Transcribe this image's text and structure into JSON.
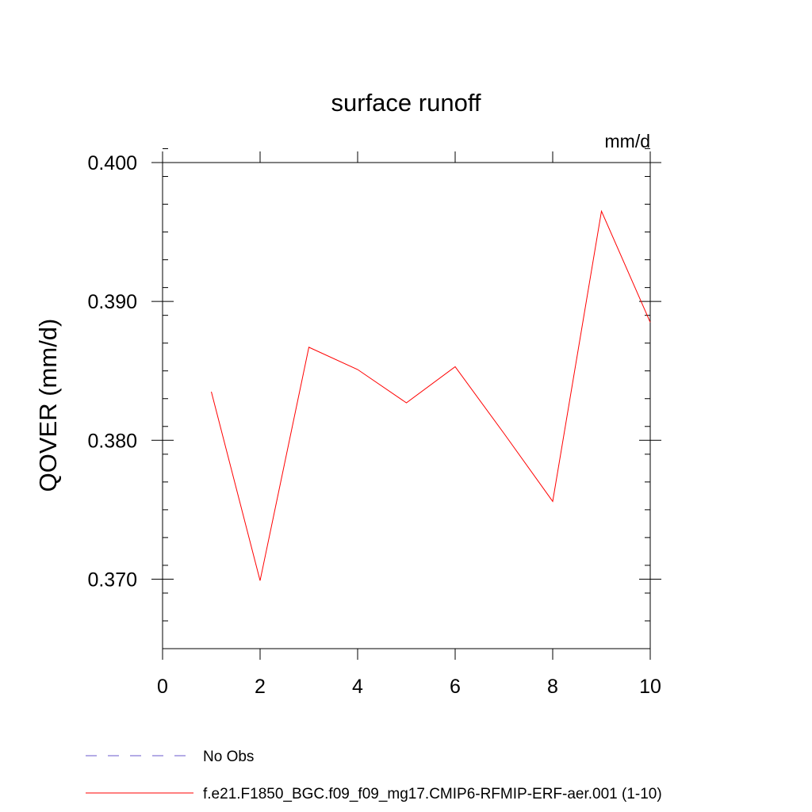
{
  "chart_data": {
    "type": "line",
    "title": "surface runoff",
    "units_label": "mm/d",
    "ylabel": "QOVER  (mm/d)",
    "xlabel": "",
    "xlim": [
      0,
      10
    ],
    "ylim": [
      0.365,
      0.4
    ],
    "x_ticks": [
      0,
      2,
      4,
      6,
      8,
      10
    ],
    "x_tick_labels": [
      "0",
      "2",
      "4",
      "6",
      "8",
      "10"
    ],
    "y_ticks": [
      0.37,
      0.38,
      0.39,
      0.4
    ],
    "y_tick_labels": [
      "0.370",
      "0.380",
      "0.390",
      "0.400"
    ],
    "y_minor_step": 0.002,
    "x_minor_step": 0,
    "grid": false,
    "legend_position": "bottom-left",
    "series": [
      {
        "name": "No Obs",
        "color": "#6a5acd",
        "dash": "dashed",
        "x": [],
        "values": []
      },
      {
        "name": "f.e21.F1850_BGC.f09_f09_mg17.CMIP6-RFMIP-ERF-aer.001 (1-10)",
        "color": "#ff0000",
        "dash": "solid",
        "x": [
          1,
          2,
          3,
          4,
          5,
          6,
          7,
          8,
          9,
          10
        ],
        "values": [
          0.3835,
          0.3699,
          0.3867,
          0.3851,
          0.3827,
          0.3853,
          0.3805,
          0.3756,
          0.3965,
          0.3885
        ]
      }
    ]
  }
}
